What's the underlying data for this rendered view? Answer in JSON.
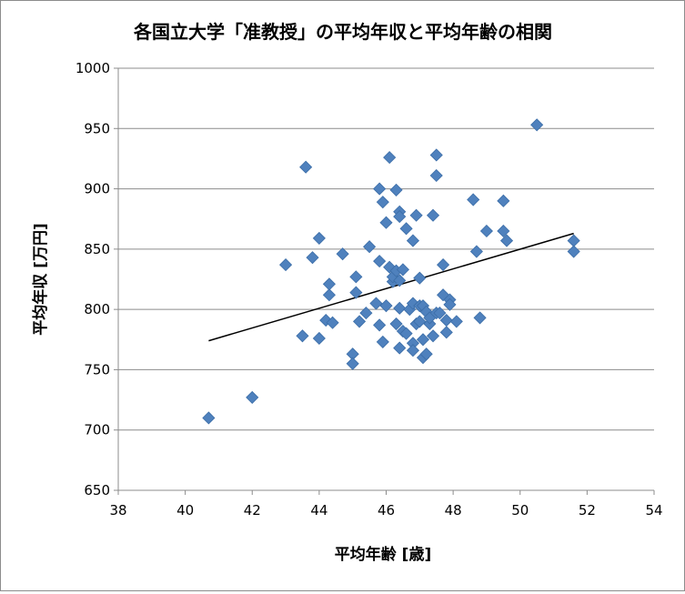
{
  "chart_data": {
    "type": "scatter",
    "title": "各国立大学「准教授」の平均年収と平均年齢の相関",
    "xlabel": "平均年齢 [歳]",
    "ylabel": "平均年収 [万円]",
    "xlim": [
      38,
      54
    ],
    "ylim": [
      650,
      1000
    ],
    "x_ticks": [
      38,
      40,
      42,
      44,
      46,
      48,
      50,
      52,
      54
    ],
    "y_ticks": [
      650,
      700,
      750,
      800,
      850,
      900,
      950,
      1000
    ],
    "grid": "horizontal",
    "legend": "none",
    "marker_color": "#4f81bd",
    "trendline_color": "#000000",
    "series": [
      {
        "marker": "diamond",
        "points": [
          [
            40.7,
            710
          ],
          [
            42.0,
            727
          ],
          [
            43.0,
            837
          ],
          [
            43.5,
            778
          ],
          [
            43.6,
            918
          ],
          [
            43.8,
            843
          ],
          [
            44.0,
            859
          ],
          [
            44.0,
            776
          ],
          [
            44.2,
            791
          ],
          [
            44.3,
            812
          ],
          [
            44.3,
            821
          ],
          [
            44.4,
            789
          ],
          [
            44.7,
            846
          ],
          [
            45.0,
            763
          ],
          [
            45.0,
            755
          ],
          [
            45.1,
            827
          ],
          [
            45.1,
            814
          ],
          [
            45.2,
            790
          ],
          [
            45.4,
            797
          ],
          [
            45.5,
            852
          ],
          [
            45.7,
            805
          ],
          [
            45.8,
            840
          ],
          [
            45.8,
            787
          ],
          [
            45.8,
            900
          ],
          [
            45.9,
            889
          ],
          [
            45.9,
            773
          ],
          [
            46.0,
            803
          ],
          [
            46.0,
            872
          ],
          [
            46.1,
            926
          ],
          [
            46.1,
            835
          ],
          [
            46.2,
            823
          ],
          [
            46.2,
            827
          ],
          [
            46.3,
            899
          ],
          [
            46.3,
            832
          ],
          [
            46.3,
            788
          ],
          [
            46.4,
            881
          ],
          [
            46.4,
            877
          ],
          [
            46.4,
            824
          ],
          [
            46.4,
            801
          ],
          [
            46.4,
            768
          ],
          [
            46.5,
            833
          ],
          [
            46.5,
            782
          ],
          [
            46.6,
            867
          ],
          [
            46.6,
            780
          ],
          [
            46.7,
            800
          ],
          [
            46.8,
            857
          ],
          [
            46.8,
            805
          ],
          [
            46.8,
            772
          ],
          [
            46.8,
            766
          ],
          [
            46.9,
            878
          ],
          [
            46.9,
            788
          ],
          [
            47.0,
            826
          ],
          [
            47.0,
            803
          ],
          [
            47.0,
            790
          ],
          [
            47.1,
            775
          ],
          [
            47.1,
            760
          ],
          [
            47.1,
            803
          ],
          [
            47.2,
            763
          ],
          [
            47.2,
            798
          ],
          [
            47.3,
            788
          ],
          [
            47.3,
            793
          ],
          [
            47.4,
            878
          ],
          [
            47.4,
            778
          ],
          [
            47.5,
            928
          ],
          [
            47.5,
            911
          ],
          [
            47.5,
            797
          ],
          [
            47.6,
            797
          ],
          [
            47.7,
            837
          ],
          [
            47.7,
            812
          ],
          [
            47.8,
            791
          ],
          [
            47.8,
            781
          ],
          [
            47.9,
            808
          ],
          [
            47.9,
            804
          ],
          [
            48.1,
            790
          ],
          [
            48.6,
            891
          ],
          [
            48.7,
            848
          ],
          [
            48.8,
            793
          ],
          [
            49.0,
            865
          ],
          [
            49.5,
            890
          ],
          [
            49.5,
            865
          ],
          [
            49.6,
            857
          ],
          [
            50.5,
            953
          ],
          [
            51.6,
            857
          ],
          [
            51.6,
            848
          ]
        ]
      }
    ],
    "trendline": {
      "x": [
        40.7,
        51.6
      ],
      "y": [
        774,
        863
      ]
    }
  }
}
